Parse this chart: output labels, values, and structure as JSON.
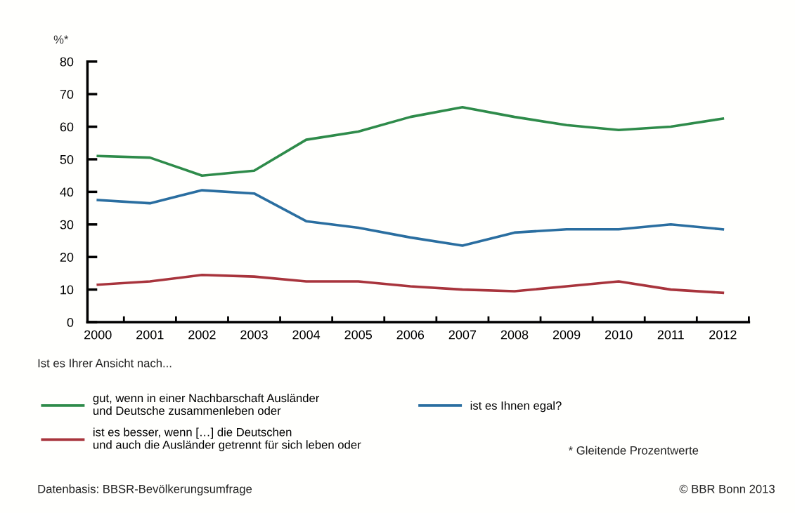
{
  "chart_data": {
    "type": "line",
    "ylabel": "%*",
    "legend_title": "Ist es Ihrer Ansicht nach...",
    "categories": [
      "2000",
      "2001",
      "2002",
      "2003",
      "2004",
      "2005",
      "2006",
      "2007",
      "2008",
      "2009",
      "2010",
      "2011",
      "2012"
    ],
    "series": [
      {
        "name": "gut, wenn in einer Nachbarschaft Ausländer\nund Deutsche zusammenleben oder",
        "color": "#2e8b4a",
        "values": [
          51,
          50.5,
          45,
          46.5,
          56,
          58.5,
          63,
          66,
          63,
          60.5,
          59,
          60,
          62.5
        ]
      },
      {
        "name": "ist es Ihnen egal?",
        "color": "#2a6ea0",
        "values": [
          37.5,
          36.5,
          40.5,
          39.5,
          31,
          29,
          26,
          23.5,
          27.5,
          28.5,
          28.5,
          30,
          28.5
        ]
      },
      {
        "name": "ist es besser, wenn […] die Deutschen\nund auch die Ausländer getrennt für sich leben oder",
        "color": "#a8343c",
        "values": [
          11.5,
          12.5,
          14.5,
          14,
          12.5,
          12.5,
          11,
          10,
          9.5,
          11,
          12.5,
          10,
          9
        ]
      }
    ],
    "ylim": [
      0,
      80
    ],
    "yticks": [
      0,
      10,
      20,
      30,
      40,
      50,
      60,
      70,
      80
    ],
    "grid": false,
    "legend": "bottom",
    "marker": "none",
    "line_style": "solid",
    "annotations": [
      "* Gleitende Prozentwerte",
      "Datenbasis: BBSR-Bevölkerungsumfrage",
      "© BBR Bonn 2013"
    ]
  }
}
